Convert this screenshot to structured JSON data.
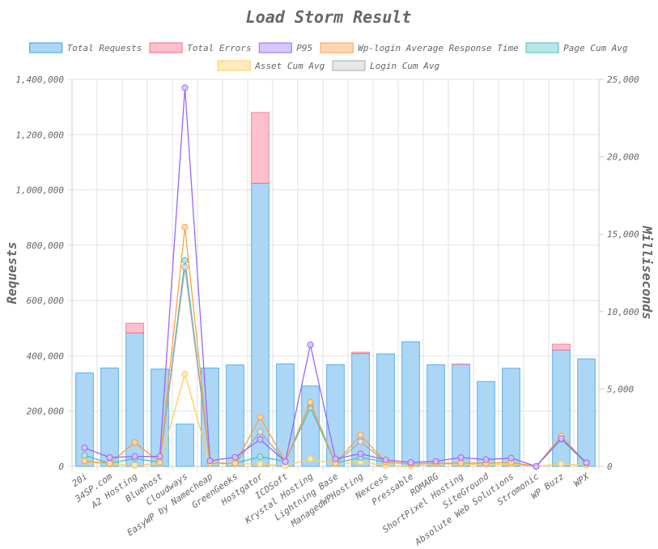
{
  "chart_data": {
    "type": "bar",
    "title": "Load Storm Result",
    "xlabel": "",
    "ylabel": "Requests",
    "y2label": "Milliseconds",
    "ylim": [
      0,
      1400000
    ],
    "y2lim": [
      0,
      25000
    ],
    "y_ticks": [
      "0",
      "200,000",
      "400,000",
      "600,000",
      "800,000",
      "1,000,000",
      "1,200,000",
      "1,400,000"
    ],
    "y2_ticks": [
      "0",
      "5,000",
      "10,000",
      "15,000",
      "20,000",
      "25,000"
    ],
    "y_tick_values": [
      0,
      200000,
      400000,
      600000,
      800000,
      1000000,
      1200000,
      1400000
    ],
    "y2_tick_values": [
      0,
      5000,
      10000,
      15000,
      20000,
      25000
    ],
    "grid": true,
    "legend_position": "top",
    "categories": [
      "20i",
      "34SP.com",
      "A2 Hosting",
      "Bluehost",
      "Cloudways",
      "EasyWP by Namecheap",
      "GreenGeeks",
      "Hostgator",
      "ICDSoft",
      "Krystal Hosting",
      "Lightning Base",
      "ManagedWPHosting",
      "Nexcess",
      "Pressable",
      "ROMARG",
      "ShortPixel Hosting",
      "SiteGround",
      "Absolute Web Solutions",
      "Stromonic",
      "WP Buzz",
      "WPX"
    ],
    "series": [
      {
        "name": "Total Requests",
        "kind": "bar",
        "axis": "left",
        "stack": "req",
        "color": "#36a2eb",
        "fill": "#acd6f5",
        "values": [
          338000,
          356000,
          483000,
          352000,
          153000,
          356000,
          367000,
          1024000,
          371000,
          291000,
          368000,
          408000,
          407000,
          451000,
          368000,
          369000,
          307000,
          355000,
          0,
          421000,
          389000
        ]
      },
      {
        "name": "Total Errors",
        "kind": "bar",
        "axis": "left",
        "stack": "req",
        "color": "#ff6384",
        "fill": "#ffc0cd",
        "values": [
          0,
          0,
          35000,
          0,
          0,
          0,
          0,
          256000,
          0,
          0,
          0,
          5000,
          0,
          0,
          0,
          1000,
          0,
          0,
          0,
          21000,
          0
        ]
      },
      {
        "name": "P95",
        "kind": "line",
        "axis": "right",
        "color": "#9966ff",
        "fill": "#d7c6fd",
        "values": [
          1200,
          575,
          645,
          645,
          24460,
          365,
          590,
          1740,
          315,
          7850,
          490,
          820,
          420,
          260,
          330,
          575,
          435,
          540,
          0,
          1800,
          245
        ]
      },
      {
        "name": "Wp-login Average Response Time",
        "kind": "line",
        "axis": "right",
        "color": "#ff9f40",
        "fill": "#ffd8b2",
        "values": [
          350,
          190,
          1550,
          260,
          15450,
          230,
          195,
          3175,
          315,
          4150,
          210,
          2020,
          290,
          160,
          210,
          210,
          210,
          260,
          0,
          1970,
          180
        ]
      },
      {
        "name": "Page Cum Avg",
        "kind": "line",
        "axis": "right",
        "color": "#4bc0c0",
        "fill": "#b7e6e6",
        "values": [
          715,
          190,
          520,
          260,
          13300,
          230,
          195,
          630,
          315,
          3800,
          210,
          575,
          290,
          160,
          210,
          210,
          210,
          260,
          0,
          1750,
          180
        ]
      },
      {
        "name": "Asset Cum Avg",
        "kind": "line",
        "axis": "right",
        "color": "#ffcd56",
        "fill": "#ffebbb",
        "values": [
          300,
          150,
          50,
          200,
          5960,
          180,
          160,
          155,
          40,
          490,
          150,
          280,
          50,
          30,
          150,
          160,
          100,
          150,
          0,
          170,
          60
        ]
      },
      {
        "name": "Login Cum Avg",
        "kind": "line",
        "axis": "right",
        "color": "#a8a8a8",
        "fill": "#e6e7e9",
        "values": [
          350,
          190,
          1550,
          260,
          12870,
          230,
          195,
          2235,
          315,
          4100,
          210,
          1600,
          290,
          160,
          210,
          210,
          210,
          260,
          0,
          1970,
          180
        ]
      }
    ]
  }
}
